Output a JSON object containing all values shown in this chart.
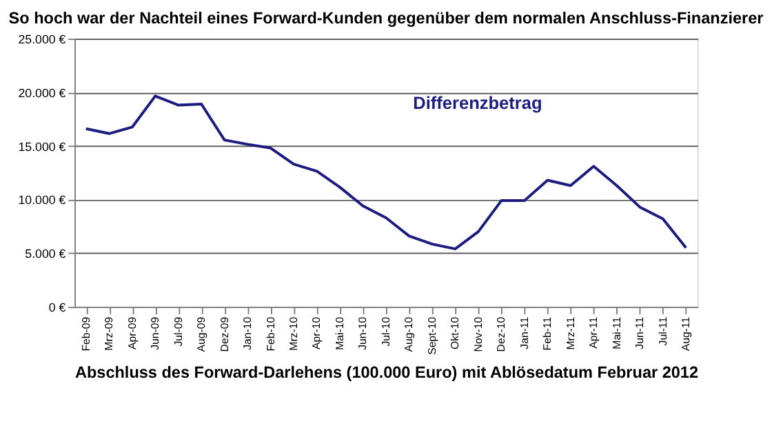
{
  "chart_data": {
    "type": "line",
    "title": "So hoch war der Nachteil eines Forward-Kunden gegenüber dem normalen Anschluss-Finanzierer",
    "xlabel": "Abschluss des Forward-Darlehens (100.000 Euro) mit Ablösedatum Februar 2012",
    "categories": [
      "Feb-09",
      "Mrz-09",
      "Apr-09",
      "Jun-09",
      "Jul-09",
      "Aug-09",
      "Dez-09",
      "Jan-10",
      "Feb-10",
      "Mrz-10",
      "Apr-10",
      "Mai-10",
      "Jun-10",
      "Jul-10",
      "Aug-10",
      "Sept-10",
      "Okt-10",
      "Nov-10",
      "Dez-10",
      "Jan-11",
      "Feb-11",
      "Mrz-11",
      "Apr-11",
      "Mai-11",
      "Jun-11",
      "Jul-11",
      "Aug-11"
    ],
    "series": [
      {
        "name": "Differenzbetrag",
        "color": "#1c1c80",
        "values": [
          16600,
          16150,
          16750,
          19650,
          18800,
          18900,
          15550,
          15150,
          14800,
          13300,
          12650,
          11150,
          9400,
          8300,
          6600,
          5850,
          5400,
          7000,
          9900,
          9900,
          11800,
          11300,
          13100,
          11300,
          9300,
          8200,
          5500
        ]
      }
    ],
    "ylim": [
      0,
      25000
    ],
    "yticks": [
      {
        "value": 0,
        "label": "0 €"
      },
      {
        "value": 5000,
        "label": "5.000 €"
      },
      {
        "value": 10000,
        "label": "10.000 €"
      },
      {
        "value": 15000,
        "label": "15.000 €"
      },
      {
        "value": 20000,
        "label": "20.000 €"
      },
      {
        "value": 25000,
        "label": "25.000 €"
      }
    ],
    "grid": "y",
    "legend": false,
    "marker": "none",
    "line_style": "solid"
  }
}
